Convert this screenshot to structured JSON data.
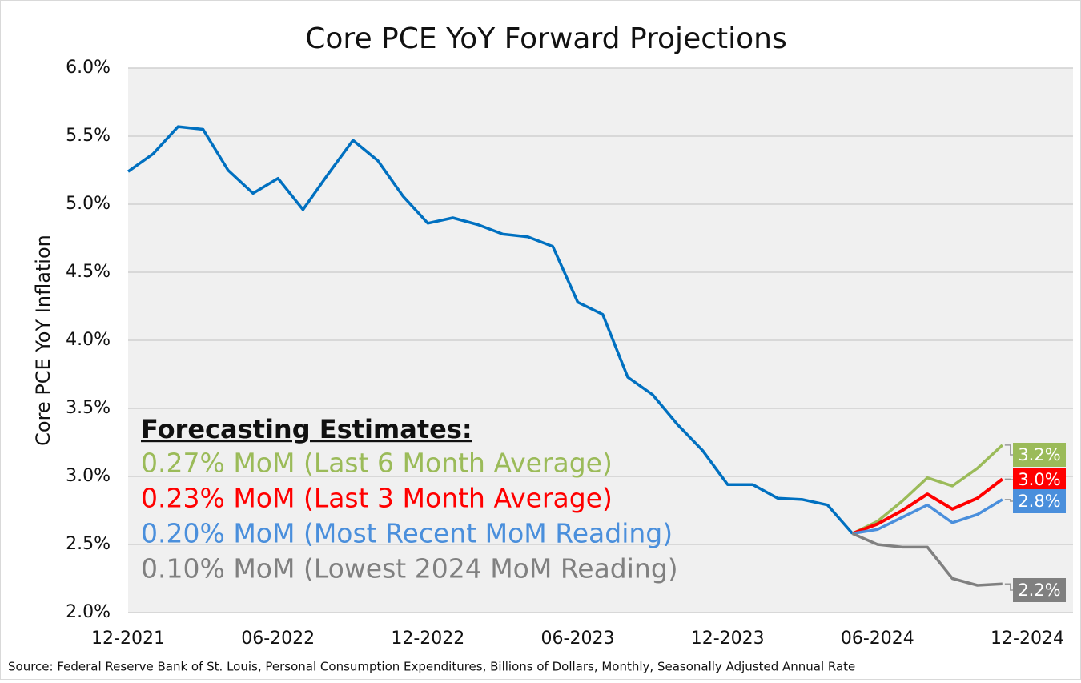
{
  "chart_data": {
    "type": "line",
    "title": "Core PCE YoY Forward Projections",
    "y_label": "Core PCE YoY Inflation",
    "source": "Source: Federal Reserve Bank of St. Louis, Personal Consumption Expenditures, Billions of Dollars, Monthly, Seasonally Adjusted Annual Rate",
    "legend_title": "Forecasting Estimates:",
    "grid": true,
    "categories": [
      "12-2021",
      null,
      null,
      null,
      null,
      null,
      "06-2022",
      null,
      null,
      null,
      null,
      null,
      "12-2022",
      null,
      null,
      null,
      null,
      null,
      "06-2023",
      null,
      null,
      null,
      null,
      null,
      "12-2023",
      null,
      null,
      null,
      null,
      null,
      "06-2024",
      null,
      null,
      null,
      null,
      null,
      "12-2024"
    ],
    "ylim": [
      2.0,
      6.0
    ],
    "yticks": [
      {
        "value": 2.0,
        "label": "2.0%"
      },
      {
        "value": 2.5,
        "label": "2.5%"
      },
      {
        "value": 3.0,
        "label": "3.0%"
      },
      {
        "value": 3.5,
        "label": "3.5%"
      },
      {
        "value": 4.0,
        "label": "4.0%"
      },
      {
        "value": 4.5,
        "label": "4.5%"
      },
      {
        "value": 5.0,
        "label": "5.0%"
      },
      {
        "value": 5.5,
        "label": "5.5%"
      },
      {
        "value": 6.0,
        "label": "6.0%"
      }
    ],
    "series": [
      {
        "color": "#0070c0",
        "values": [
          5.24,
          5.37,
          5.57,
          5.55,
          5.25,
          5.08,
          5.19,
          4.96,
          5.22,
          5.47,
          5.32,
          5.06,
          4.86,
          4.9,
          4.85,
          4.78,
          4.76,
          4.69,
          4.28,
          4.19,
          3.73,
          3.6,
          3.38,
          3.19,
          2.94,
          2.94,
          2.84,
          2.83,
          2.79,
          2.58,
          null,
          null,
          null,
          null,
          null,
          null,
          null
        ]
      },
      {
        "name": "0.27% MoM (Last 6 Month Average)",
        "color": "#9bbb59",
        "values": [
          null,
          null,
          null,
          null,
          null,
          null,
          null,
          null,
          null,
          null,
          null,
          null,
          null,
          null,
          null,
          null,
          null,
          null,
          null,
          null,
          null,
          null,
          null,
          null,
          null,
          null,
          null,
          null,
          null,
          2.58,
          2.67,
          2.82,
          2.99,
          2.93,
          3.06,
          3.23,
          null
        ],
        "value_labels": [
          null,
          null,
          null,
          null,
          null,
          null,
          null,
          null,
          null,
          null,
          null,
          null,
          null,
          null,
          null,
          null,
          null,
          null,
          null,
          null,
          null,
          null,
          null,
          null,
          null,
          null,
          null,
          null,
          null,
          null,
          null,
          null,
          null,
          null,
          null,
          "3.2%",
          null
        ]
      },
      {
        "name": "0.23% MoM (Last 3 Month Average)",
        "color": "#ff0000",
        "values": [
          null,
          null,
          null,
          null,
          null,
          null,
          null,
          null,
          null,
          null,
          null,
          null,
          null,
          null,
          null,
          null,
          null,
          null,
          null,
          null,
          null,
          null,
          null,
          null,
          null,
          null,
          null,
          null,
          null,
          2.58,
          2.65,
          2.75,
          2.87,
          2.76,
          2.84,
          2.98,
          null
        ],
        "value_labels": [
          null,
          null,
          null,
          null,
          null,
          null,
          null,
          null,
          null,
          null,
          null,
          null,
          null,
          null,
          null,
          null,
          null,
          null,
          null,
          null,
          null,
          null,
          null,
          null,
          null,
          null,
          null,
          null,
          null,
          null,
          null,
          null,
          null,
          null,
          null,
          "3.0%",
          null
        ]
      },
      {
        "name": "0.20% MoM (Most Recent MoM Reading)",
        "color": "#4a8fdc",
        "values": [
          null,
          null,
          null,
          null,
          null,
          null,
          null,
          null,
          null,
          null,
          null,
          null,
          null,
          null,
          null,
          null,
          null,
          null,
          null,
          null,
          null,
          null,
          null,
          null,
          null,
          null,
          null,
          null,
          null,
          2.58,
          2.61,
          2.7,
          2.79,
          2.66,
          2.72,
          2.83,
          null
        ],
        "value_labels": [
          null,
          null,
          null,
          null,
          null,
          null,
          null,
          null,
          null,
          null,
          null,
          null,
          null,
          null,
          null,
          null,
          null,
          null,
          null,
          null,
          null,
          null,
          null,
          null,
          null,
          null,
          null,
          null,
          null,
          null,
          null,
          null,
          null,
          null,
          null,
          "2.8%",
          null
        ]
      },
      {
        "name": "0.10% MoM (Lowest 2024 MoM Reading)",
        "color": "#808080",
        "values": [
          null,
          null,
          null,
          null,
          null,
          null,
          null,
          null,
          null,
          null,
          null,
          null,
          null,
          null,
          null,
          null,
          null,
          null,
          null,
          null,
          null,
          null,
          null,
          null,
          null,
          null,
          null,
          null,
          null,
          2.58,
          2.5,
          2.48,
          2.48,
          2.25,
          2.2,
          2.21,
          null
        ],
        "value_labels": [
          null,
          null,
          null,
          null,
          null,
          null,
          null,
          null,
          null,
          null,
          null,
          null,
          null,
          null,
          null,
          null,
          null,
          null,
          null,
          null,
          null,
          null,
          null,
          null,
          null,
          null,
          null,
          null,
          null,
          null,
          null,
          null,
          null,
          null,
          null,
          "2.2%",
          null
        ]
      }
    ]
  }
}
